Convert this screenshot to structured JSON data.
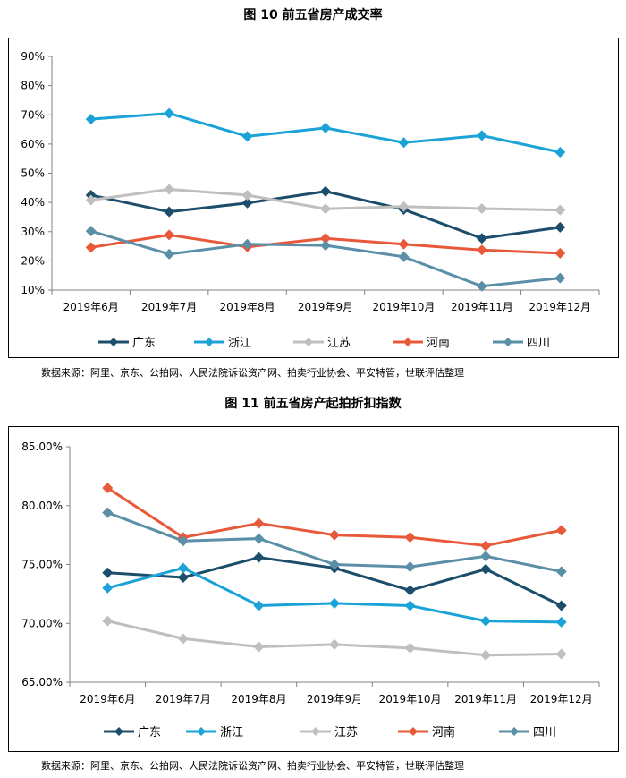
{
  "chart_data": [
    {
      "type": "line",
      "title": "图 10  前五省房产成交率",
      "categories": [
        "2019年6月",
        "2019年7月",
        "2019年8月",
        "2019年9月",
        "2019年10月",
        "2019年11月",
        "2019年12月"
      ],
      "ylim": [
        0.1,
        0.9
      ],
      "yticks": [
        "90%",
        "80%",
        "70%",
        "60%",
        "50%",
        "40%",
        "30%",
        "20%",
        "10%"
      ],
      "legend_position": "bottom",
      "grid": false,
      "series": [
        {
          "name": "广东",
          "color": "#1c4e6b",
          "values": [
            0.425,
            0.368,
            0.398,
            0.438,
            0.376,
            0.277,
            0.315
          ]
        },
        {
          "name": "浙江",
          "color": "#1ba3d8",
          "values": [
            0.685,
            0.705,
            0.626,
            0.655,
            0.605,
            0.629,
            0.572
          ]
        },
        {
          "name": "江苏",
          "color": "#bfbfbf",
          "values": [
            0.408,
            0.445,
            0.425,
            0.378,
            0.386,
            0.379,
            0.374
          ]
        },
        {
          "name": "河南",
          "color": "#e8593a",
          "values": [
            0.246,
            0.289,
            0.248,
            0.277,
            0.257,
            0.237,
            0.226
          ]
        },
        {
          "name": "四川",
          "color": "#5b8fa8",
          "values": [
            0.302,
            0.223,
            0.257,
            0.253,
            0.214,
            0.113,
            0.141
          ]
        }
      ],
      "source": "数据来源：阿里、京东、公拍网、人民法院诉讼资产网、拍卖行业协会、平安特管，世联评估整理"
    },
    {
      "type": "line",
      "title": "图 11  前五省房产起拍折扣指数",
      "categories": [
        "2019年6月",
        "2019年7月",
        "2019年8月",
        "2019年9月",
        "2019年10月",
        "2019年11月",
        "2019年12月"
      ],
      "ylim": [
        0.65,
        0.85
      ],
      "yticks": [
        "85.00%",
        "80.00%",
        "75.00%",
        "70.00%",
        "65.00%"
      ],
      "legend_position": "bottom",
      "grid": false,
      "series": [
        {
          "name": "广东",
          "color": "#1c4e6b",
          "values": [
            0.743,
            0.739,
            0.756,
            0.747,
            0.728,
            0.746,
            0.715
          ]
        },
        {
          "name": "浙江",
          "color": "#1ba3d8",
          "values": [
            0.73,
            0.747,
            0.715,
            0.717,
            0.715,
            0.702,
            0.701
          ]
        },
        {
          "name": "江苏",
          "color": "#bfbfbf",
          "values": [
            0.702,
            0.687,
            0.68,
            0.682,
            0.679,
            0.673,
            0.674
          ]
        },
        {
          "name": "河南",
          "color": "#e8593a",
          "values": [
            0.815,
            0.773,
            0.785,
            0.775,
            0.773,
            0.766,
            0.779
          ]
        },
        {
          "name": "四川",
          "color": "#5b8fa8",
          "values": [
            0.794,
            0.77,
            0.772,
            0.75,
            0.748,
            0.757,
            0.744
          ]
        }
      ],
      "source": "数据来源：阿里、京东、公拍网、人民法院诉讼资产网、拍卖行业协会、平安特管，世联评估整理"
    }
  ]
}
